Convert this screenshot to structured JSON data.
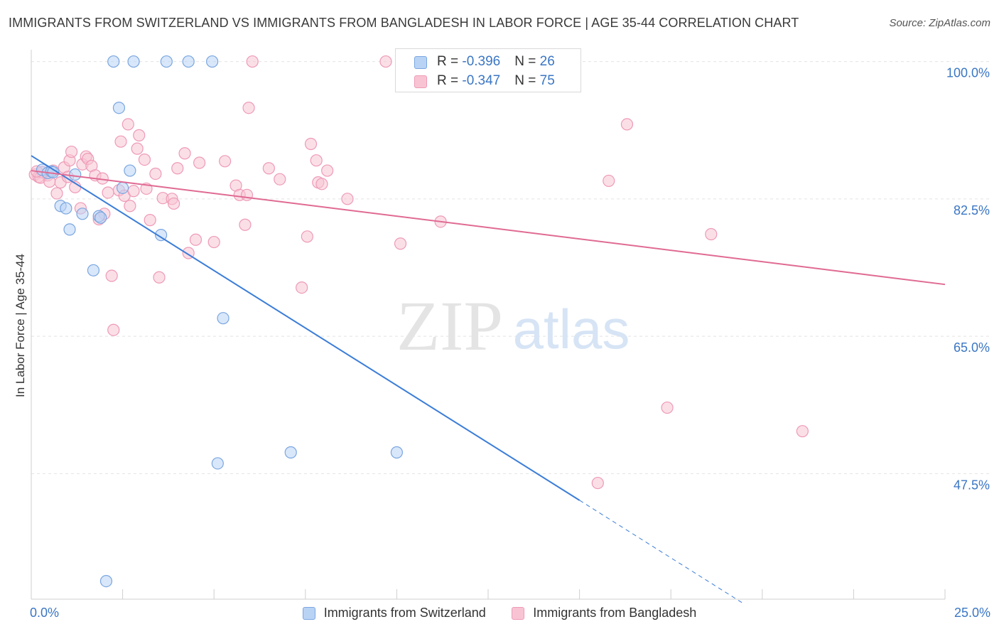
{
  "title": "IMMIGRANTS FROM SWITZERLAND VS IMMIGRANTS FROM BANGLADESH IN LABOR FORCE | AGE 35-44 CORRELATION CHART",
  "source": "Source: ZipAtlas.com",
  "watermark": {
    "zip": "ZIP",
    "atlas": "atlas"
  },
  "colors": {
    "switzerland_fill": "#b9d3f5",
    "switzerland_stroke": "#7aa6e0",
    "switzerland_line": "#3b7dd8",
    "bangladesh_fill": "#f8c4d4",
    "bangladesh_stroke": "#ee9ab6",
    "bangladesh_line": "#e06a93",
    "axis_text": "#3a76c4",
    "grid": "#e3e3e3"
  },
  "stats": [
    {
      "r_label": "R = ",
      "r": "-0.396",
      "n_label": "N = ",
      "n": "26"
    },
    {
      "r_label": "R = ",
      "r": "-0.347",
      "n_label": "N = ",
      "n": "75"
    }
  ],
  "chart_data": {
    "type": "scatter",
    "title": "IMMIGRANTS FROM SWITZERLAND VS IMMIGRANTS FROM BANGLADESH IN LABOR FORCE | AGE 35-44 CORRELATION CHART",
    "xlabel": "",
    "ylabel": "In Labor Force | Age 35-44",
    "xlim": [
      0,
      25
    ],
    "ylim": [
      31.5,
      101.5
    ],
    "x_tick_labels": [
      "0.0%",
      "25.0%"
    ],
    "y_ticks": [
      100.0,
      82.5,
      65.0,
      47.5
    ],
    "y_tick_labels": [
      "100.0%",
      "82.5%",
      "65.0%",
      "47.5%"
    ],
    "grid": true,
    "legend_position": "bottom",
    "series": [
      {
        "name": "Immigrants from Switzerland",
        "points": [
          [
            0.3,
            86.2
          ],
          [
            0.45,
            85.8
          ],
          [
            0.55,
            86.0
          ],
          [
            0.6,
            85.9
          ],
          [
            1.2,
            85.6
          ],
          [
            0.8,
            81.6
          ],
          [
            0.95,
            81.3
          ],
          [
            1.05,
            78.6
          ],
          [
            1.4,
            80.6
          ],
          [
            1.7,
            73.4
          ],
          [
            1.85,
            80.3
          ],
          [
            1.9,
            80.1
          ],
          [
            2.25,
            100.0
          ],
          [
            2.8,
            100.0
          ],
          [
            3.7,
            100.0
          ],
          [
            4.3,
            100.0
          ],
          [
            4.95,
            100.0
          ],
          [
            2.4,
            94.1
          ],
          [
            2.5,
            83.9
          ],
          [
            2.7,
            86.1
          ],
          [
            3.55,
            77.9
          ],
          [
            5.25,
            67.3
          ],
          [
            5.1,
            48.8
          ],
          [
            7.1,
            50.2
          ],
          [
            10.0,
            50.2
          ],
          [
            2.05,
            33.8
          ]
        ],
        "trend": {
          "x0": 0,
          "y0": 88.0,
          "x1": 15.0,
          "y1": 44.1,
          "dash_x1": 19.5,
          "dash_y1": 30.9
        }
      },
      {
        "name": "Immigrants from Bangladesh",
        "points": [
          [
            0.1,
            85.6
          ],
          [
            0.2,
            85.3
          ],
          [
            0.3,
            85.9
          ],
          [
            0.45,
            85.5
          ],
          [
            0.6,
            86.1
          ],
          [
            0.7,
            83.2
          ],
          [
            0.8,
            84.6
          ],
          [
            0.9,
            86.5
          ],
          [
            1.0,
            85.3
          ],
          [
            1.05,
            87.4
          ],
          [
            1.1,
            88.5
          ],
          [
            1.2,
            84.0
          ],
          [
            1.35,
            81.3
          ],
          [
            1.4,
            86.9
          ],
          [
            1.5,
            87.9
          ],
          [
            1.55,
            87.6
          ],
          [
            1.65,
            86.7
          ],
          [
            1.75,
            85.5
          ],
          [
            1.85,
            79.9
          ],
          [
            1.95,
            85.1
          ],
          [
            2.0,
            80.6
          ],
          [
            2.1,
            83.3
          ],
          [
            2.2,
            72.7
          ],
          [
            2.25,
            65.8
          ],
          [
            2.4,
            83.6
          ],
          [
            2.45,
            89.8
          ],
          [
            2.55,
            82.9
          ],
          [
            2.65,
            92.0
          ],
          [
            2.7,
            81.6
          ],
          [
            2.8,
            83.5
          ],
          [
            2.9,
            88.9
          ],
          [
            2.95,
            90.6
          ],
          [
            3.1,
            87.5
          ],
          [
            3.15,
            83.8
          ],
          [
            3.25,
            79.8
          ],
          [
            3.4,
            85.7
          ],
          [
            3.5,
            72.5
          ],
          [
            3.6,
            82.6
          ],
          [
            3.85,
            82.5
          ],
          [
            3.9,
            81.9
          ],
          [
            4.0,
            86.4
          ],
          [
            4.2,
            88.3
          ],
          [
            4.3,
            75.6
          ],
          [
            4.5,
            77.3
          ],
          [
            4.6,
            87.1
          ],
          [
            5.0,
            77.0
          ],
          [
            5.3,
            87.3
          ],
          [
            5.6,
            84.2
          ],
          [
            5.7,
            83.0
          ],
          [
            5.85,
            79.2
          ],
          [
            5.9,
            83.0
          ],
          [
            5.95,
            94.1
          ],
          [
            6.05,
            100.0
          ],
          [
            6.5,
            86.4
          ],
          [
            6.8,
            85.0
          ],
          [
            7.4,
            71.2
          ],
          [
            7.55,
            77.7
          ],
          [
            7.65,
            89.5
          ],
          [
            7.8,
            87.4
          ],
          [
            7.85,
            84.6
          ],
          [
            7.95,
            84.4
          ],
          [
            8.1,
            86.1
          ],
          [
            8.65,
            82.5
          ],
          [
            9.7,
            100.0
          ],
          [
            10.1,
            76.8
          ],
          [
            11.2,
            79.6
          ],
          [
            15.5,
            46.3
          ],
          [
            15.8,
            84.8
          ],
          [
            16.3,
            92.0
          ],
          [
            17.4,
            55.9
          ],
          [
            18.6,
            78.0
          ],
          [
            21.1,
            52.9
          ],
          [
            0.25,
            85.2
          ],
          [
            0.5,
            84.7
          ],
          [
            0.15,
            86.0
          ]
        ],
        "trend": {
          "x0": 0,
          "y0": 86.1,
          "x1": 25.0,
          "y1": 71.6
        }
      }
    ]
  }
}
